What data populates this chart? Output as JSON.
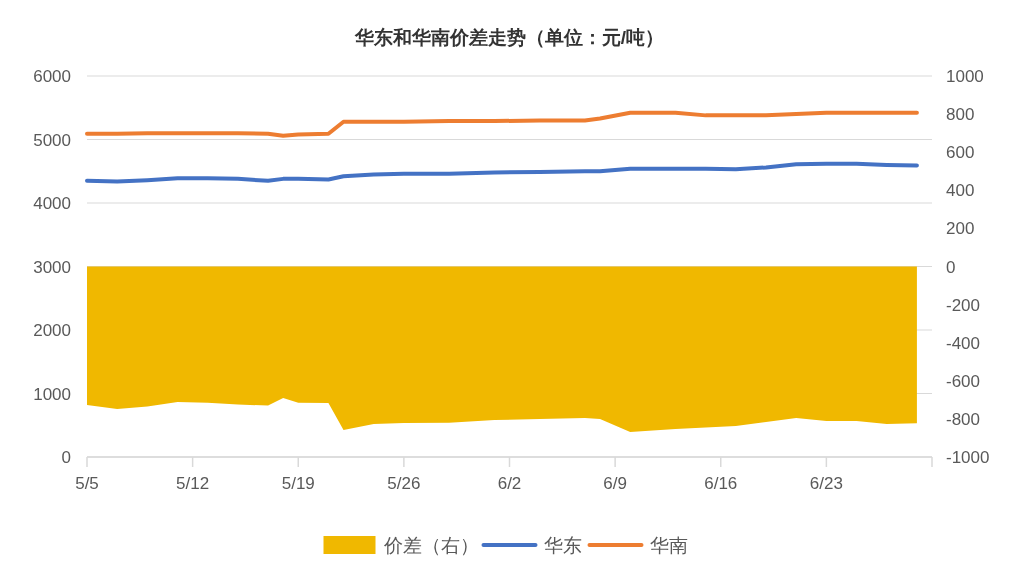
{
  "chart_data": {
    "type": "line",
    "title": "华东和华南价差走势（单位：元/吨）",
    "x": [
      "--05-05",
      "--05-07",
      "--05-09",
      "--05-11",
      "--05-13",
      "--05-15",
      "--05-17",
      "--05-18",
      "--05-19",
      "--05-21",
      "--05-22",
      "--05-24",
      "--05-26",
      "--05-29",
      "--06-01",
      "--06-04",
      "--06-07",
      "--06-08",
      "--06-10",
      "--06-13",
      "--06-15",
      "--06-17",
      "--06-19",
      "--06-21",
      "--06-23",
      "--06-25",
      "--06-27",
      "--06-29"
    ],
    "series": [
      {
        "name": "价差（右）",
        "type": "area",
        "axis": "y2",
        "color": "#f0b800",
        "values": [
          -727,
          -748,
          -735,
          -711,
          -715,
          -725,
          -730,
          -690,
          -715,
          -716,
          -858,
          -827,
          -822,
          -820,
          -806,
          -800,
          -795,
          -800,
          -869,
          -853,
          -845,
          -837,
          -816,
          -795,
          -811,
          -811,
          -827,
          -823
        ]
      },
      {
        "name": "华东",
        "color": "#4472c4",
        "values": [
          4350,
          4340,
          4360,
          4390,
          4390,
          4380,
          4350,
          4380,
          4380,
          4370,
          4420,
          4450,
          4460,
          4460,
          4480,
          4490,
          4500,
          4500,
          4540,
          4540,
          4540,
          4530,
          4560,
          4610,
          4620,
          4620,
          4600,
          4590
        ]
      },
      {
        "name": "华南",
        "color": "#ed7d31",
        "values": [
          5090,
          5090,
          5100,
          5100,
          5100,
          5100,
          5090,
          5060,
          5080,
          5090,
          5280,
          5280,
          5280,
          5290,
          5290,
          5300,
          5300,
          5330,
          5420,
          5420,
          5380,
          5380,
          5380,
          5400,
          5420,
          5420,
          5420,
          5420
        ]
      }
    ],
    "xlim": [
      "--05-05",
      "--06-30"
    ],
    "xticks": [
      {
        "value": "--05-05",
        "label": "5/5"
      },
      {
        "value": "--05-12",
        "label": "5/12"
      },
      {
        "value": "--05-19",
        "label": "5/19"
      },
      {
        "value": "--05-26",
        "label": "5/26"
      },
      {
        "value": "--06-02",
        "label": "6/2"
      },
      {
        "value": "--06-09",
        "label": "6/9"
      },
      {
        "value": "--06-16",
        "label": "6/16"
      },
      {
        "value": "--06-23",
        "label": "6/23"
      },
      {
        "value": "--06-30",
        "label": null
      }
    ],
    "ylim": [
      0,
      6000
    ],
    "yticks": [
      0,
      1000,
      2000,
      3000,
      4000,
      5000,
      6000
    ],
    "y2lim": [
      -1000,
      1000
    ],
    "y2ticks": [
      -1000,
      -800,
      -600,
      -400,
      -200,
      0,
      200,
      400,
      600,
      800,
      1000
    ],
    "grid": "y",
    "legend": "bottom",
    "marker": "none"
  }
}
